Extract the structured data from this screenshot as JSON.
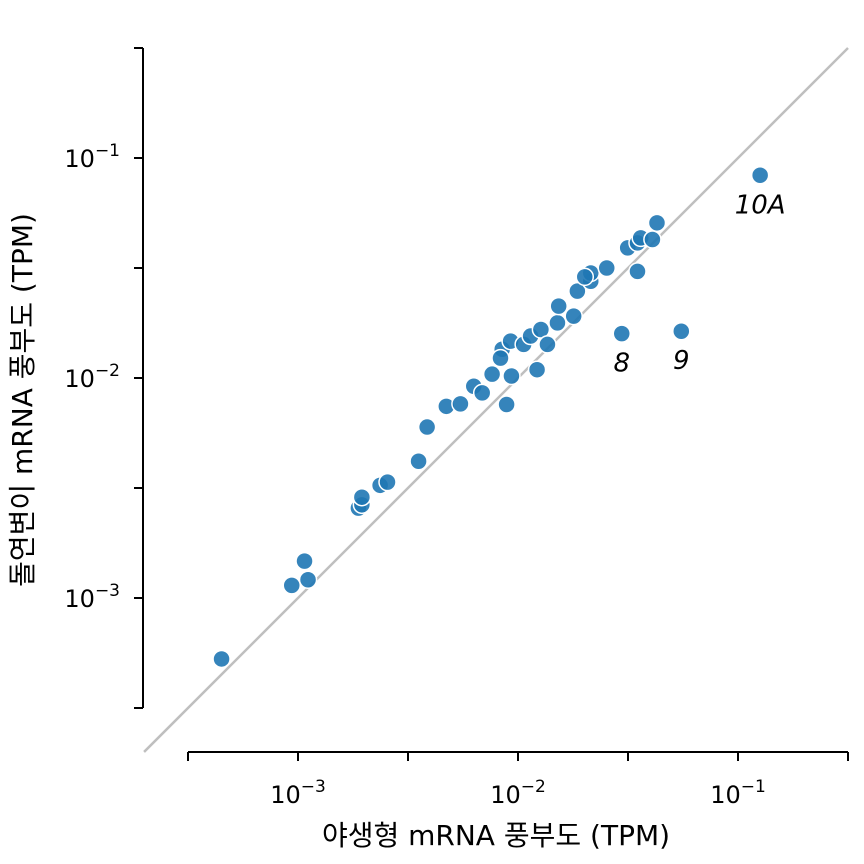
{
  "chart_data": {
    "type": "scatter",
    "xlabel": "야생형 mRNA 풍부도 (TPM)",
    "ylabel": "돌연변이 mRNA 풍부도 (TPM)",
    "xscale": "log",
    "yscale": "log",
    "xlim": [
      0.000316,
      0.316
    ],
    "ylim": [
      0.000316,
      0.316
    ],
    "xticks": [
      {
        "base": "10",
        "exp": "−3"
      },
      {
        "base": "10",
        "exp": "−2"
      },
      {
        "base": "10",
        "exp": "−1"
      }
    ],
    "yticks": [
      {
        "base": "10",
        "exp": "−3"
      },
      {
        "base": "10",
        "exp": "−2"
      },
      {
        "base": "10",
        "exp": "−1"
      }
    ],
    "grid": false,
    "reference_line": "y = x",
    "colors": {
      "points": "#1f77b4",
      "reference_line": "#bfbfbf",
      "point_edge": "#ffffff"
    },
    "points": [
      [
        0.000449,
        0.000528
      ],
      [
        0.000936,
        0.00114
      ],
      [
        0.00107,
        0.00147
      ],
      [
        0.00111,
        0.00121
      ],
      [
        0.00188,
        0.00256
      ],
      [
        0.00195,
        0.00265
      ],
      [
        0.00195,
        0.00287
      ],
      [
        0.00236,
        0.00325
      ],
      [
        0.00255,
        0.00336
      ],
      [
        0.00353,
        0.00418
      ],
      [
        0.00386,
        0.00598
      ],
      [
        0.00472,
        0.00743
      ],
      [
        0.00547,
        0.00762
      ],
      [
        0.00629,
        0.00917
      ],
      [
        0.00687,
        0.00855
      ],
      [
        0.00762,
        0.0104
      ],
      [
        0.00933,
        0.0102
      ],
      [
        0.00887,
        0.00757
      ],
      [
        0.0122,
        0.0109
      ],
      [
        0.00847,
        0.0135
      ],
      [
        0.00925,
        0.0147
      ],
      [
        0.0106,
        0.0142
      ],
      [
        0.0114,
        0.0155
      ],
      [
        0.0127,
        0.0166
      ],
      [
        0.0136,
        0.0142
      ],
      [
        0.0151,
        0.0178
      ],
      [
        0.0153,
        0.0212
      ],
      [
        0.0179,
        0.0191
      ],
      [
        0.0186,
        0.0248
      ],
      [
        0.0214,
        0.0275
      ],
      [
        0.0214,
        0.03
      ],
      [
        0.0253,
        0.0316
      ],
      [
        0.0315,
        0.039
      ],
      [
        0.0349,
        0.0411
      ],
      [
        0.0361,
        0.0433
      ],
      [
        0.0408,
        0.0426
      ],
      [
        0.0428,
        0.0507
      ],
      [
        0.0349,
        0.0305
      ],
      [
        0.0201,
        0.0288
      ],
      [
        0.00832,
        0.0123
      ],
      [
        0.0296,
        0.0159
      ],
      [
        0.0552,
        0.0163
      ],
      [
        0.126,
        0.0834
      ]
    ],
    "annotations": [
      {
        "text": "8",
        "x": 0.0296,
        "y": 0.0159
      },
      {
        "text": "9",
        "x": 0.0552,
        "y": 0.0163
      },
      {
        "text": "10A",
        "x": 0.126,
        "y": 0.0834
      }
    ]
  }
}
